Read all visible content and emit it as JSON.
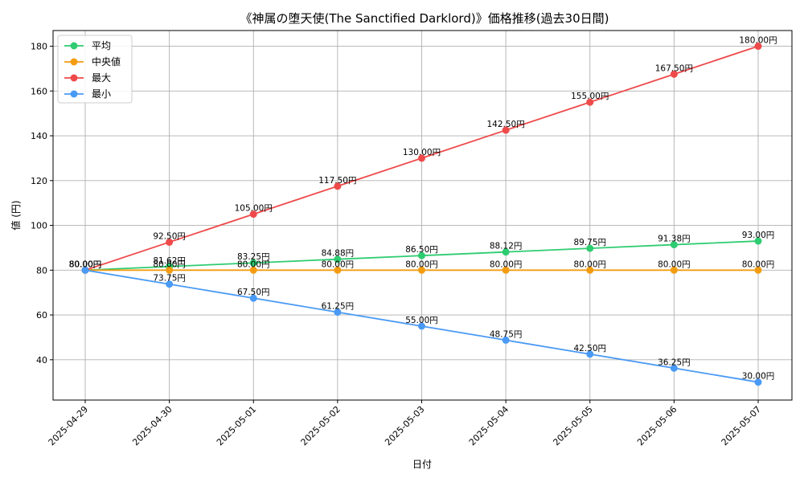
{
  "chart_data": {
    "type": "line",
    "title": "《神属の堕天使(The Sanctified Darklord)》価格推移(過去30日間)",
    "xlabel": "日付",
    "ylabel": "値 (円)",
    "value_suffix": "円",
    "categories": [
      "2025-04-29",
      "2025-04-30",
      "2025-05-01",
      "2025-05-02",
      "2025-05-03",
      "2025-05-04",
      "2025-05-05",
      "2025-05-06",
      "2025-05-07"
    ],
    "ylim": [
      22,
      187
    ],
    "yticks": [
      40,
      60,
      80,
      100,
      120,
      140,
      160,
      180
    ],
    "grid": true,
    "legend_position": "top-left",
    "series": [
      {
        "name": "平均",
        "color": "#2ecc71",
        "values": [
          80.0,
          81.62,
          83.25,
          84.88,
          86.5,
          88.12,
          89.75,
          91.38,
          93.0
        ]
      },
      {
        "name": "中央値",
        "color": "#f39c12",
        "values": [
          80.0,
          80.0,
          80.0,
          80.0,
          80.0,
          80.0,
          80.0,
          80.0,
          80.0
        ]
      },
      {
        "name": "最大",
        "color": "#ef4a4a",
        "values": [
          80.0,
          92.5,
          105.0,
          117.5,
          130.0,
          142.5,
          155.0,
          167.5,
          180.0
        ]
      },
      {
        "name": "最小",
        "color": "#4a9af5",
        "values": [
          80.0,
          73.75,
          67.5,
          61.25,
          55.0,
          48.75,
          42.5,
          36.25,
          30.0
        ]
      }
    ]
  }
}
